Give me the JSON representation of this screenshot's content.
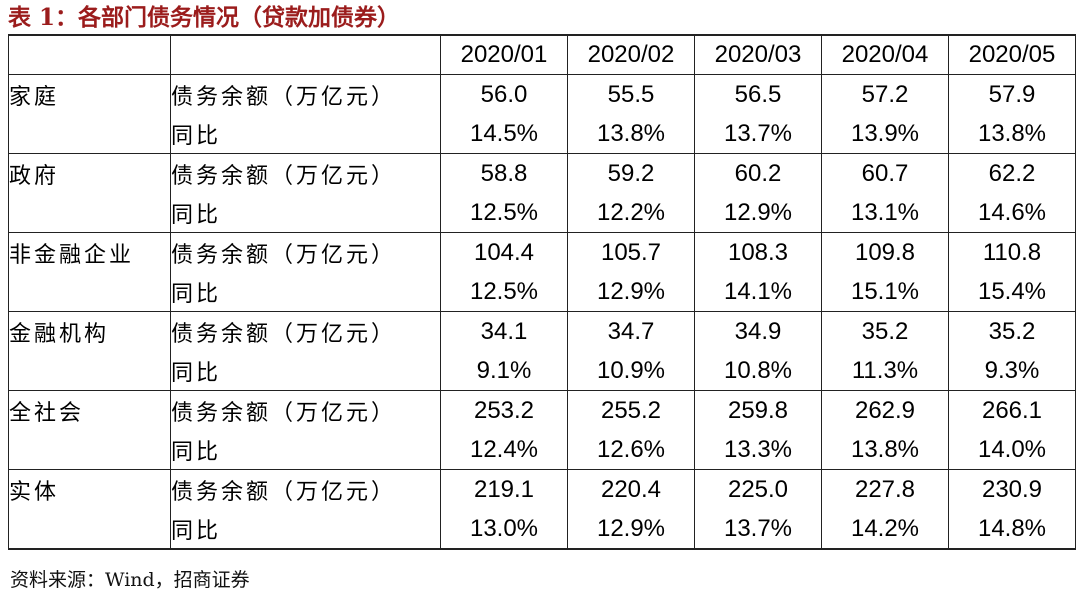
{
  "title": "表 1：各部门债务情况（贷款加债券）",
  "columns": [
    "2020/01",
    "2020/02",
    "2020/03",
    "2020/04",
    "2020/05"
  ],
  "rows": [
    {
      "sector": "家庭",
      "metric1": "债务余额（万亿元）",
      "values1": [
        "56.0",
        "55.5",
        "56.5",
        "57.2",
        "57.9"
      ],
      "metric2": "同比",
      "values2": [
        "14.5%",
        "13.8%",
        "13.7%",
        "13.9%",
        "13.8%"
      ]
    },
    {
      "sector": "政府",
      "metric1": "债务余额（万亿元）",
      "values1": [
        "58.8",
        "59.2",
        "60.2",
        "60.7",
        "62.2"
      ],
      "metric2": "同比",
      "values2": [
        "12.5%",
        "12.2%",
        "12.9%",
        "13.1%",
        "14.6%"
      ]
    },
    {
      "sector": "非金融企业",
      "metric1": "债务余额（万亿元）",
      "values1": [
        "104.4",
        "105.7",
        "108.3",
        "109.8",
        "110.8"
      ],
      "metric2": "同比",
      "values2": [
        "12.5%",
        "12.9%",
        "14.1%",
        "15.1%",
        "15.4%"
      ]
    },
    {
      "sector": "金融机构",
      "metric1": "债务余额（万亿元）",
      "values1": [
        "34.1",
        "34.7",
        "34.9",
        "35.2",
        "35.2"
      ],
      "metric2": "同比",
      "values2": [
        "9.1%",
        "10.9%",
        "10.8%",
        "11.3%",
        "9.3%"
      ]
    },
    {
      "sector": "全社会",
      "metric1": "债务余额（万亿元）",
      "values1": [
        "253.2",
        "255.2",
        "259.8",
        "262.9",
        "266.1"
      ],
      "metric2": "同比",
      "values2": [
        "12.4%",
        "12.6%",
        "13.3%",
        "13.8%",
        "14.0%"
      ]
    },
    {
      "sector": "实体",
      "metric1": "债务余额（万亿元）",
      "values1": [
        "219.1",
        "220.4",
        "225.0",
        "227.8",
        "230.9"
      ],
      "metric2": "同比",
      "values2": [
        "13.0%",
        "12.9%",
        "13.7%",
        "14.2%",
        "14.8%"
      ]
    }
  ],
  "source": "资料来源：Wind，招商证券",
  "colors": {
    "title": "#9b1c1c",
    "border": "#222222"
  }
}
